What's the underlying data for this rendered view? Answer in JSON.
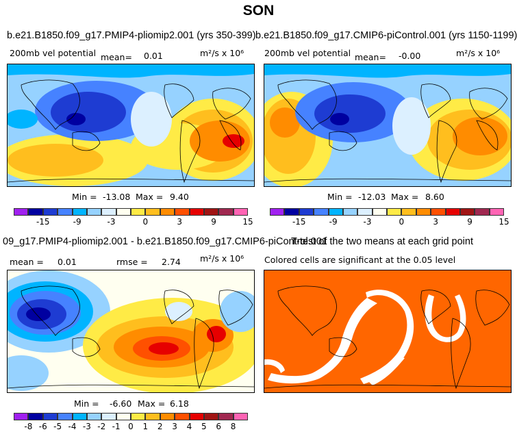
{
  "page": {
    "title": "SON"
  },
  "panels": [
    {
      "title": "b.e21.B1850.f09_g17.PMIP4-pliomip2.001 (yrs 350-399)",
      "variable": "200mb vel potential",
      "stat_label": "mean=",
      "stat_value": "0.01",
      "units": "m²/s x 10⁶",
      "min_label": "Min =",
      "min": "-13.08",
      "max_label": "Max =",
      "max": "9.40"
    },
    {
      "title": "b.e21.B1850.f09_g17.CMIP6-piControl.001 (yrs 1150-1199)",
      "variable": "200mb vel potential",
      "stat_label": "mean=",
      "stat_value": "-0.00",
      "units": "m²/s x 10⁶",
      "min_label": "Min =",
      "min": "-12.03",
      "max_label": "Max =",
      "max": "8.60"
    },
    {
      "title": "09_g17.PMIP4-pliomip2.001 - b.e21.B1850.f09_g17.CMIP6-piControl.001",
      "mean_label": "mean =",
      "mean_value": "0.01",
      "rmse_label": "rmse =",
      "rmse_value": "2.74",
      "units": "m²/s x 10⁶",
      "min_label": "Min =",
      "min": "-6.60",
      "max_label": "Max =",
      "max": "6.18"
    },
    {
      "title": "T-test of the two means at each grid point",
      "subtitle": "Colored cells are significant at the 0.05 level"
    }
  ],
  "chart_data": [
    {
      "type": "heatmap",
      "title": "b.e21.B1850.f09_g17.PMIP4-pliomip2.001 (yrs 350-399)",
      "colorbar": {
        "labels": [
          "-15",
          "-9",
          "-3",
          "0",
          "3",
          "9",
          "15"
        ],
        "colors": [
          "#a020f0",
          "#0000a0",
          "#1e3cd2",
          "#4682ff",
          "#00b4ff",
          "#96d2ff",
          "#dcf0ff",
          "#fffff0",
          "#ffeb46",
          "#ffbe1e",
          "#ff8c00",
          "#ff5000",
          "#e60000",
          "#a01414",
          "#a02850",
          "#ff64b4"
        ]
      }
    },
    {
      "type": "heatmap",
      "title": "b.e21.B1850.f09_g17.CMIP6-piControl.001 (yrs 1150-1199)",
      "colorbar": {
        "labels": [
          "-15",
          "-9",
          "-3",
          "0",
          "3",
          "9",
          "15"
        ],
        "colors": [
          "#a020f0",
          "#0000a0",
          "#1e3cd2",
          "#4682ff",
          "#00b4ff",
          "#96d2ff",
          "#dcf0ff",
          "#fffff0",
          "#ffeb46",
          "#ffbe1e",
          "#ff8c00",
          "#ff5000",
          "#e60000",
          "#a01414",
          "#a02850",
          "#ff64b4"
        ]
      }
    },
    {
      "type": "heatmap",
      "title": "09_g17.PMIP4-pliomip2.001 - b.e21.B1850.f09_g17.CMIP6-piControl.001",
      "colorbar": {
        "labels": [
          "-8",
          "-6",
          "-5",
          "-4",
          "-3",
          "-2",
          "-1",
          "0",
          "1",
          "2",
          "3",
          "4",
          "5",
          "6",
          "8"
        ],
        "colors": [
          "#a020f0",
          "#0000a0",
          "#1e3cd2",
          "#4682ff",
          "#00b4ff",
          "#96d2ff",
          "#dcf0ff",
          "#fffff0",
          "#ffeb46",
          "#ffbe1e",
          "#ff8c00",
          "#ff5000",
          "#e60000",
          "#a01414",
          "#a02850",
          "#ff64b4"
        ]
      }
    },
    {
      "type": "heatmap",
      "title": "T-test of the two means at each grid point",
      "significant_color": "#ff6600"
    }
  ]
}
